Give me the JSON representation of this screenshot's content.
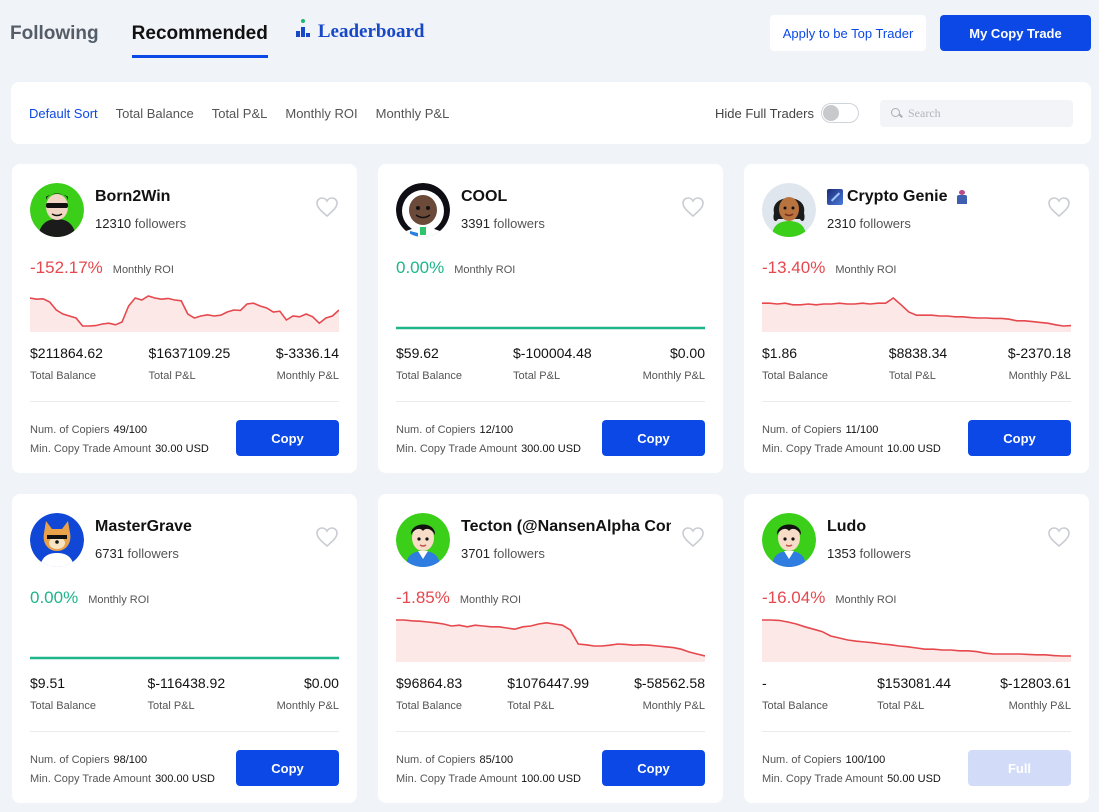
{
  "header": {
    "tabs": [
      {
        "label": "Following"
      },
      {
        "label": "Recommended"
      },
      {
        "label": "Leaderboard"
      }
    ],
    "apply_label": "Apply to be Top Trader",
    "my_copy_label": "My Copy Trade"
  },
  "filters": {
    "sorts": [
      "Default Sort",
      "Total Balance",
      "Total P&L",
      "Monthly ROI",
      "Monthly P&L"
    ],
    "hide_full_label": "Hide Full Traders",
    "hide_full_on": false,
    "search_placeholder": "Search"
  },
  "labels": {
    "monthly_roi": "Monthly ROI",
    "followers": "followers",
    "total_balance": "Total Balance",
    "total_pnl": "Total P&L",
    "monthly_pnl": "Monthly P&L",
    "num_copiers": "Num. of Copiers",
    "min_copy": "Min. Copy Trade Amount"
  },
  "colors": {
    "accent": "#0b48e6",
    "negative": "#e5484d",
    "positive": "#1fb58a"
  },
  "traders": [
    {
      "name": "Born2Win",
      "followers": "12310",
      "roi": "-152.17%",
      "roi_sign": "neg",
      "total_balance": "$211864.62",
      "total_pnl": "$1637109.25",
      "monthly_pnl": "$-3336.14",
      "copiers": "49/100",
      "min_copy": "30.00 USD",
      "button": "Copy",
      "full": false,
      "avatar": "sunglasses-man-avatar",
      "trend": [
        0.75,
        0.72,
        0.73,
        0.65,
        0.45,
        0.35,
        0.3,
        0.25,
        0.05,
        0.05,
        0.06,
        0.1,
        0.12,
        0.08,
        0.15,
        0.55,
        0.75,
        0.7,
        0.8,
        0.75,
        0.72,
        0.74,
        0.7,
        0.68,
        0.35,
        0.25,
        0.3,
        0.33,
        0.3,
        0.32,
        0.4,
        0.45,
        0.44,
        0.6,
        0.62,
        0.55,
        0.5,
        0.4,
        0.42,
        0.2,
        0.3,
        0.28,
        0.35,
        0.28,
        0.12,
        0.25,
        0.3,
        0.45
      ]
    },
    {
      "name": "COOL",
      "followers": "3391",
      "roi": "0.00%",
      "roi_sign": "zero",
      "total_balance": "$59.62",
      "total_pnl": "$-100004.48",
      "monthly_pnl": "$0.00",
      "copiers": "12/100",
      "min_copy": "300.00 USD",
      "button": "Copy",
      "full": false,
      "avatar": "astronaut-avatar",
      "trend": []
    },
    {
      "name": "Crypto Genie",
      "followers": "2310",
      "roi": "-13.40%",
      "roi_sign": "neg",
      "total_balance": "$1.86",
      "total_pnl": "$8838.34",
      "monthly_pnl": "$-2370.18",
      "copiers": "11/100",
      "min_copy": "10.00 USD",
      "button": "Copy",
      "full": false,
      "avatar": "woman-avatar",
      "trend": [
        0.62,
        0.62,
        0.6,
        0.62,
        0.58,
        0.58,
        0.6,
        0.58,
        0.6,
        0.6,
        0.62,
        0.6,
        0.6,
        0.62,
        0.6,
        0.62,
        0.62,
        0.75,
        0.58,
        0.4,
        0.32,
        0.32,
        0.32,
        0.3,
        0.3,
        0.28,
        0.28,
        0.26,
        0.25,
        0.25,
        0.24,
        0.24,
        0.22,
        0.18,
        0.18,
        0.16,
        0.14,
        0.12,
        0.08,
        0.05,
        0.06
      ]
    },
    {
      "name": "MasterGrave",
      "followers": "6731",
      "roi": "0.00%",
      "roi_sign": "zero",
      "total_balance": "$9.51",
      "total_pnl": "$-116438.92",
      "monthly_pnl": "$0.00",
      "copiers": "98/100",
      "min_copy": "300.00 USD",
      "button": "Copy",
      "full": false,
      "avatar": "doge-avatar",
      "trend": []
    },
    {
      "name": "Tecton (@NansenAlpha Com...",
      "followers": "3701",
      "roi": "-1.85%",
      "roi_sign": "neg",
      "total_balance": "$96864.83",
      "total_pnl": "$1076447.99",
      "monthly_pnl": "$-58562.58",
      "copiers": "85/100",
      "min_copy": "100.00 USD",
      "button": "Copy",
      "full": false,
      "avatar": "boy-avatar",
      "trend": [
        0.95,
        0.95,
        0.93,
        0.92,
        0.9,
        0.88,
        0.85,
        0.8,
        0.82,
        0.78,
        0.82,
        0.8,
        0.78,
        0.78,
        0.75,
        0.72,
        0.78,
        0.8,
        0.85,
        0.88,
        0.85,
        0.82,
        0.7,
        0.35,
        0.33,
        0.3,
        0.3,
        0.32,
        0.35,
        0.34,
        0.32,
        0.33,
        0.32,
        0.3,
        0.28,
        0.26,
        0.22,
        0.15,
        0.1,
        0.05
      ]
    },
    {
      "name": "Ludo",
      "followers": "1353",
      "roi": "-16.04%",
      "roi_sign": "neg",
      "total_balance": "-",
      "total_pnl": "$153081.44",
      "monthly_pnl": "$-12803.61",
      "copiers": "100/100",
      "min_copy": "50.00 USD",
      "button": "Full",
      "full": true,
      "avatar": "boy-avatar",
      "trend": [
        0.95,
        0.95,
        0.94,
        0.9,
        0.85,
        0.78,
        0.72,
        0.66,
        0.55,
        0.5,
        0.45,
        0.42,
        0.4,
        0.38,
        0.35,
        0.33,
        0.3,
        0.28,
        0.25,
        0.22,
        0.22,
        0.2,
        0.2,
        0.18,
        0.18,
        0.16,
        0.12,
        0.1,
        0.1,
        0.1,
        0.1,
        0.09,
        0.08,
        0.08,
        0.06,
        0.05,
        0.05
      ]
    }
  ]
}
